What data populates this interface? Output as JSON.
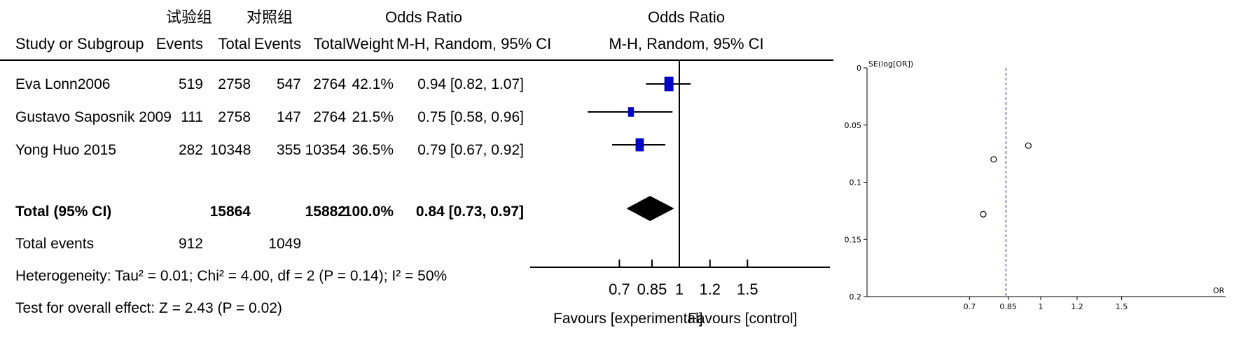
{
  "headers": {
    "group_experimental": "试验组",
    "group_control": "对照组",
    "odds_ratio": "Odds Ratio",
    "odds_ratio_plot": "Odds Ratio",
    "study": "Study or Subgroup",
    "events_exp": "Events",
    "total_exp": "Total",
    "events_ctl": "Events",
    "total_ctl": "Total",
    "weight": "Weight",
    "method": "M-H, Random, 95% CI",
    "method_plot": "M-H, Random, 95% CI"
  },
  "rows": [
    {
      "study": "Eva Lonn2006",
      "events_exp": "519",
      "total_exp": "2758",
      "events_ctl": "547",
      "total_ctl": "2764",
      "weight": "42.1%",
      "ci_text": "0.94 [0.82, 1.07]"
    },
    {
      "study": "Gustavo Saposnik  2009",
      "events_exp": "111",
      "total_exp": "2758",
      "events_ctl": "147",
      "total_ctl": "2764",
      "weight": "21.5%",
      "ci_text": "0.75 [0.58, 0.96]"
    },
    {
      "study": "Yong Huo   2015",
      "events_exp": "282",
      "total_exp": "10348",
      "events_ctl": "355",
      "total_ctl": "10354",
      "weight": "36.5%",
      "ci_text": "0.79 [0.67, 0.92]"
    }
  ],
  "total": {
    "label": "Total (95% CI)",
    "total_exp": "15864",
    "total_ctl": "15882",
    "weight": "100.0%",
    "ci_text": "0.84 [0.73, 0.97]"
  },
  "total_events": {
    "label": "Total events",
    "exp": "912",
    "ctl": "1049"
  },
  "heterogeneity": "Heterogeneity: Tau² = 0.01; Chi² = 4.00, df = 2 (P = 0.14); I² = 50%",
  "overall_effect": "Test for overall effect: Z = 2.43 (P = 0.02)",
  "favours_experimental": "Favours [experimental]",
  "favours_control": "Favours [control]",
  "colors": {
    "marker": "#0000cc",
    "diamond": "#000000",
    "funnel_line": "#1a1aa0"
  },
  "chart_data": [
    {
      "type": "forest",
      "scale": "log",
      "x_ticks": [
        0.7,
        0.85,
        1,
        1.2,
        1.5
      ],
      "x_tick_labels": [
        "0.7",
        "0.85",
        "1",
        "1.2",
        "1.5"
      ],
      "null_value": 1,
      "studies": [
        {
          "or": 0.94,
          "lower": 0.82,
          "upper": 1.07,
          "weight": 42.1
        },
        {
          "or": 0.75,
          "lower": 0.58,
          "upper": 0.96,
          "weight": 21.5
        },
        {
          "or": 0.79,
          "lower": 0.67,
          "upper": 0.92,
          "weight": 36.5
        }
      ],
      "pooled": {
        "or": 0.84,
        "lower": 0.73,
        "upper": 0.97
      }
    },
    {
      "type": "scatter",
      "subtype": "funnel",
      "xlabel": "OR",
      "ylabel": "SE(log[OR])",
      "xscale": "log",
      "x_ticks": [
        0.7,
        0.85,
        1,
        1.2,
        1.5
      ],
      "x_tick_labels": [
        "0.7",
        "0.85",
        "1",
        "1.2",
        "1.5"
      ],
      "y_ticks": [
        0,
        0.05,
        0.1,
        0.15,
        0.2
      ],
      "y_tick_labels": [
        "0",
        "0.05",
        "0.1",
        "0.15",
        "0.2"
      ],
      "ylim": [
        0,
        0.2
      ],
      "y_inverted": true,
      "pooled_or": 0.84,
      "points": [
        {
          "x": 0.94,
          "y": 0.068
        },
        {
          "x": 0.79,
          "y": 0.08
        },
        {
          "x": 0.75,
          "y": 0.128
        }
      ]
    }
  ]
}
